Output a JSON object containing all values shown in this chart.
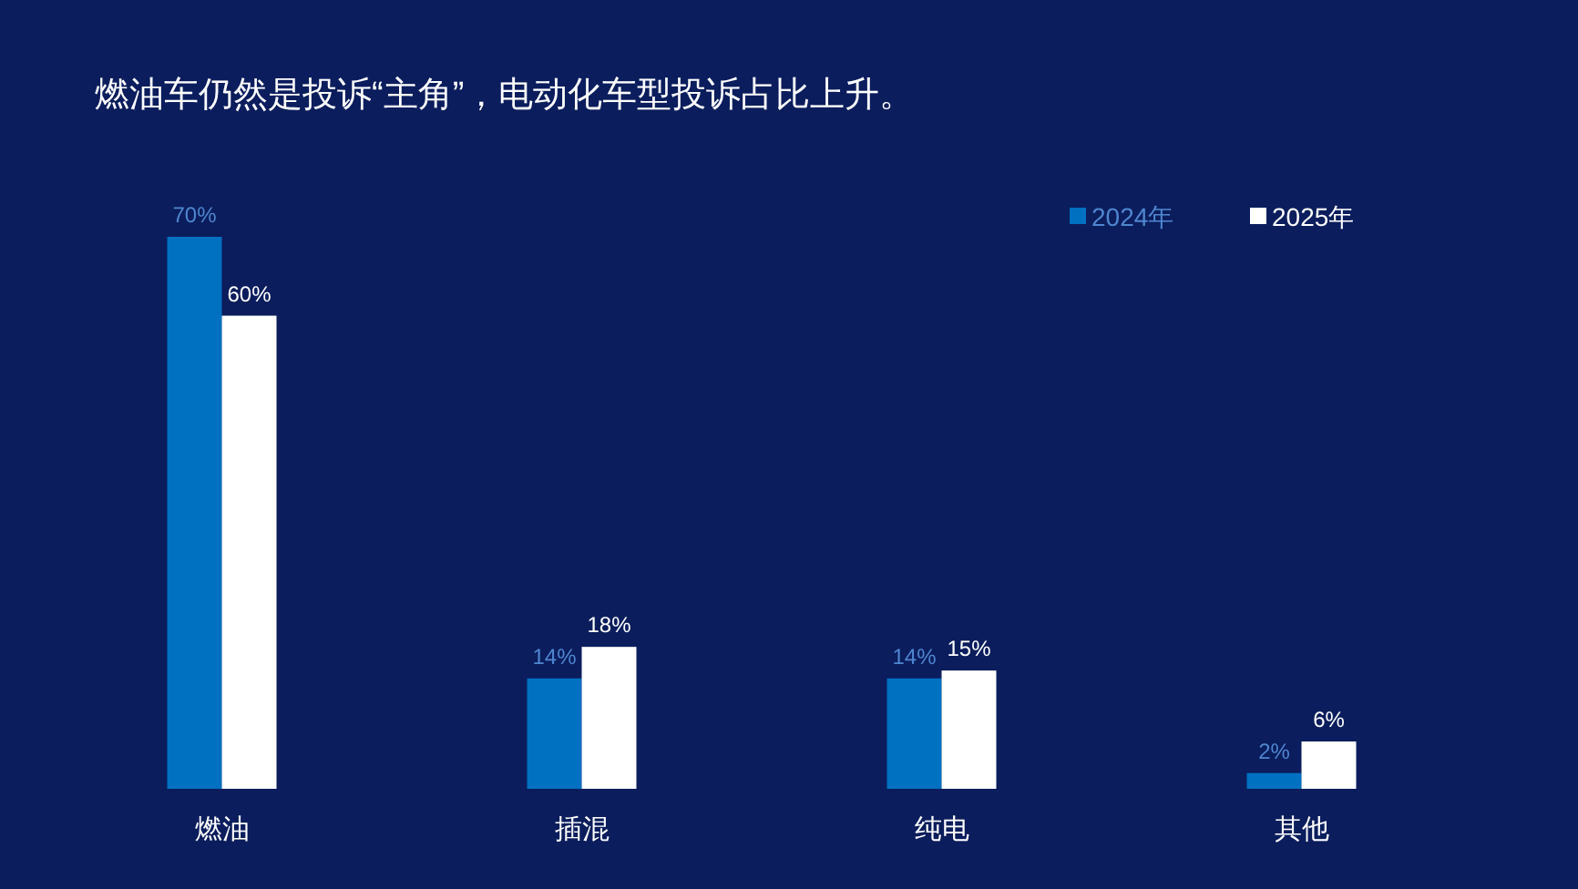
{
  "chart_data": {
    "type": "bar",
    "title": "燃油车仍然是投诉“主角”，电动化车型投诉占比上升。",
    "categories": [
      "燃油",
      "插混",
      "纯电",
      "其他"
    ],
    "series": [
      {
        "name": "2024年",
        "color": "#0070c0",
        "values": [
          70,
          14,
          14,
          2
        ],
        "value_labels": [
          "70%",
          "14%",
          "14%",
          "2%"
        ]
      },
      {
        "name": "2025年",
        "color": "#ffffff",
        "values": [
          60,
          18,
          15,
          6
        ],
        "value_labels": [
          "60%",
          "18%",
          "15%",
          "6%"
        ]
      }
    ],
    "legend": "top right"
  }
}
